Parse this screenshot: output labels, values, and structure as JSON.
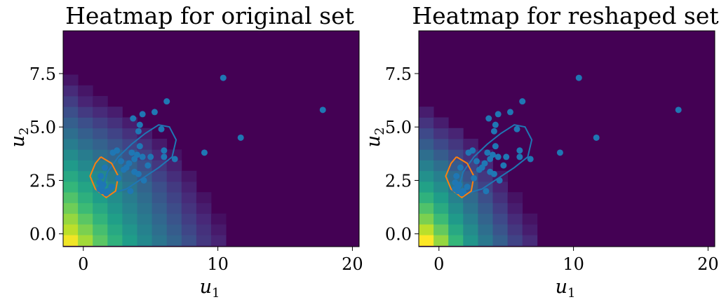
{
  "chart_data": [
    {
      "type": "heatmap",
      "title": "Heatmap for original set",
      "xlabel": "u",
      "xlabel_sub": "1",
      "ylabel": "u",
      "ylabel_sub": "2",
      "xlim": [
        -1.5,
        20.5
      ],
      "ylim": [
        -0.6,
        9.5
      ],
      "xticks": [
        0,
        10,
        20
      ],
      "xtick_labels": [
        "0",
        "10",
        "20"
      ],
      "yticks": [
        0.0,
        2.5,
        5.0,
        7.5
      ],
      "ytick_labels": [
        "0.0",
        "2.5",
        "5.0",
        "7.5"
      ],
      "colormap": "viridis",
      "background_color": "#440154",
      "cell_w": 1.1,
      "cell_h": 0.5,
      "columns_x0": -1.5,
      "rows_y0": -0.55,
      "heat_columns": [
        [
          0.98,
          0.9,
          0.84,
          0.78,
          0.72,
          0.66,
          0.6,
          0.54,
          0.48,
          0.42,
          0.36,
          0.3,
          0.24,
          0.18,
          0.12,
          0.06
        ],
        [
          0.86,
          0.8,
          0.74,
          0.68,
          0.63,
          0.58,
          0.53,
          0.47,
          0.42,
          0.36,
          0.3,
          0.24,
          0.17,
          0.1,
          0.06
        ],
        [
          0.74,
          0.7,
          0.65,
          0.6,
          0.55,
          0.52,
          0.47,
          0.42,
          0.36,
          0.31,
          0.25,
          0.19,
          0.12,
          0.06
        ],
        [
          0.64,
          0.6,
          0.56,
          0.52,
          0.49,
          0.46,
          0.42,
          0.37,
          0.32,
          0.26,
          0.2,
          0.14,
          0.08
        ],
        [
          0.55,
          0.52,
          0.48,
          0.45,
          0.42,
          0.39,
          0.35,
          0.31,
          0.26,
          0.2,
          0.14,
          0.08
        ],
        [
          0.47,
          0.44,
          0.41,
          0.38,
          0.35,
          0.32,
          0.28,
          0.24,
          0.19,
          0.14,
          0.08
        ],
        [
          0.39,
          0.36,
          0.33,
          0.3,
          0.27,
          0.24,
          0.2,
          0.16,
          0.11,
          0.07
        ],
        [
          0.32,
          0.29,
          0.26,
          0.23,
          0.2,
          0.17,
          0.13,
          0.09,
          0.05
        ],
        [
          0.24,
          0.21,
          0.18,
          0.15,
          0.12,
          0.09,
          0.06
        ],
        [
          0.16,
          0.14,
          0.11,
          0.08,
          0.05
        ],
        [
          0.1,
          0.07,
          0.04
        ]
      ],
      "points": [
        [
          1.2,
          2.1
        ],
        [
          1.5,
          2.3
        ],
        [
          1.4,
          2.0
        ],
        [
          1.8,
          2.0
        ],
        [
          1.2,
          2.4
        ],
        [
          2.1,
          2.2
        ],
        [
          1.6,
          3.1
        ],
        [
          1.3,
          2.7
        ],
        [
          1.7,
          1.9
        ],
        [
          1.4,
          2.2
        ],
        [
          2.2,
          3.8
        ],
        [
          2.5,
          3.9
        ],
        [
          3.0,
          3.0
        ],
        [
          3.2,
          3.1
        ],
        [
          3.4,
          3.3
        ],
        [
          3.6,
          3.8
        ],
        [
          3.8,
          3.5
        ],
        [
          4.0,
          3.7
        ],
        [
          4.2,
          4.1
        ],
        [
          4.4,
          3.6
        ],
        [
          3.7,
          5.4
        ],
        [
          4.1,
          4.8
        ],
        [
          4.2,
          5.1
        ],
        [
          4.4,
          5.6
        ],
        [
          4.8,
          3.2
        ],
        [
          5.0,
          3.6
        ],
        [
          5.3,
          5.7
        ],
        [
          5.8,
          4.9
        ],
        [
          6.0,
          3.9
        ],
        [
          6.0,
          3.6
        ],
        [
          6.2,
          6.2
        ],
        [
          6.8,
          3.5
        ],
        [
          3.8,
          2.9
        ],
        [
          4.1,
          2.8
        ],
        [
          3.5,
          2.0
        ],
        [
          4.5,
          2.5
        ],
        [
          2.6,
          2.6
        ],
        [
          2.8,
          3.4
        ],
        [
          9.0,
          3.8
        ],
        [
          10.4,
          7.3
        ],
        [
          11.7,
          4.5
        ],
        [
          17.8,
          5.8
        ]
      ],
      "point_color": "#1f77b4",
      "contours": [
        {
          "color": "#1f77b4",
          "points": [
            [
              1.5,
              2.2
            ],
            [
              1.8,
              2.9
            ],
            [
              2.6,
              3.6
            ],
            [
              3.6,
              4.2
            ],
            [
              4.6,
              4.7
            ],
            [
              5.6,
              5.1
            ],
            [
              6.4,
              5.0
            ],
            [
              6.9,
              4.4
            ],
            [
              6.6,
              3.6
            ],
            [
              5.6,
              3.1
            ],
            [
              4.4,
              2.6
            ],
            [
              3.2,
              2.1
            ],
            [
              2.1,
              1.9
            ],
            [
              1.6,
              2.0
            ],
            [
              1.5,
              2.2
            ]
          ]
        },
        {
          "color": "#ff7f0e",
          "points": [
            [
              1.3,
              3.6
            ],
            [
              2.1,
              3.3
            ],
            [
              2.6,
              2.7
            ],
            [
              2.4,
              2.0
            ],
            [
              1.7,
              1.7
            ],
            [
              0.9,
              2.1
            ],
            [
              0.5,
              2.7
            ],
            [
              0.9,
              3.3
            ],
            [
              1.3,
              3.6
            ]
          ]
        }
      ]
    },
    {
      "type": "heatmap",
      "title": "Heatmap for reshaped set",
      "xlabel": "u",
      "xlabel_sub": "1",
      "ylabel": "u",
      "ylabel_sub": "2",
      "xlim": [
        -1.5,
        20.5
      ],
      "ylim": [
        -0.6,
        9.5
      ],
      "xticks": [
        0,
        10,
        20
      ],
      "xtick_labels": [
        "0",
        "10",
        "20"
      ],
      "yticks": [
        0.0,
        2.5,
        5.0,
        7.5
      ],
      "ytick_labels": [
        "0.0",
        "2.5",
        "5.0",
        "7.5"
      ],
      "colormap": "viridis",
      "background_color": "#440154",
      "cell_w": 1.1,
      "cell_h": 0.5,
      "columns_x0": -1.5,
      "rows_y0": -0.55,
      "heat_columns": [
        [
          1.0,
          0.9,
          0.8,
          0.72,
          0.64,
          0.57,
          0.5,
          0.43,
          0.36,
          0.29,
          0.22,
          0.15,
          0.08
        ],
        [
          0.84,
          0.76,
          0.68,
          0.61,
          0.55,
          0.49,
          0.43,
          0.36,
          0.29,
          0.22,
          0.15,
          0.08
        ],
        [
          0.66,
          0.6,
          0.54,
          0.49,
          0.44,
          0.39,
          0.34,
          0.28,
          0.22,
          0.16,
          0.1
        ],
        [
          0.52,
          0.48,
          0.43,
          0.38,
          0.34,
          0.3,
          0.25,
          0.2,
          0.14,
          0.08
        ],
        [
          0.4,
          0.36,
          0.32,
          0.28,
          0.24,
          0.2,
          0.16,
          0.11,
          0.06
        ],
        [
          0.3,
          0.26,
          0.22,
          0.18,
          0.14,
          0.1,
          0.06
        ],
        [
          0.2,
          0.16,
          0.12,
          0.08,
          0.05
        ],
        [
          0.12,
          0.08,
          0.05
        ]
      ],
      "points": [
        [
          1.2,
          2.1
        ],
        [
          1.5,
          2.3
        ],
        [
          1.4,
          2.0
        ],
        [
          1.8,
          2.0
        ],
        [
          1.2,
          2.4
        ],
        [
          2.1,
          2.2
        ],
        [
          1.6,
          3.1
        ],
        [
          1.3,
          2.7
        ],
        [
          1.7,
          1.9
        ],
        [
          1.4,
          2.2
        ],
        [
          2.2,
          3.8
        ],
        [
          2.5,
          3.9
        ],
        [
          3.0,
          3.0
        ],
        [
          3.2,
          3.1
        ],
        [
          3.4,
          3.3
        ],
        [
          3.6,
          3.8
        ],
        [
          3.8,
          3.5
        ],
        [
          4.0,
          3.7
        ],
        [
          4.2,
          4.1
        ],
        [
          4.4,
          3.6
        ],
        [
          3.7,
          5.4
        ],
        [
          4.1,
          4.8
        ],
        [
          4.2,
          5.1
        ],
        [
          4.4,
          5.6
        ],
        [
          4.8,
          3.2
        ],
        [
          5.0,
          3.6
        ],
        [
          5.3,
          5.7
        ],
        [
          5.8,
          4.9
        ],
        [
          6.0,
          3.9
        ],
        [
          6.0,
          3.6
        ],
        [
          6.2,
          6.2
        ],
        [
          6.8,
          3.5
        ],
        [
          3.8,
          2.9
        ],
        [
          4.1,
          2.8
        ],
        [
          3.5,
          2.0
        ],
        [
          4.5,
          2.5
        ],
        [
          2.6,
          2.6
        ],
        [
          2.8,
          3.4
        ],
        [
          9.0,
          3.8
        ],
        [
          10.4,
          7.3
        ],
        [
          11.7,
          4.5
        ],
        [
          17.8,
          5.8
        ]
      ],
      "point_color": "#1f77b4",
      "contours": [
        {
          "color": "#1f77b4",
          "points": [
            [
              1.5,
              2.2
            ],
            [
              1.8,
              2.9
            ],
            [
              2.6,
              3.6
            ],
            [
              3.6,
              4.2
            ],
            [
              4.6,
              4.7
            ],
            [
              5.6,
              5.1
            ],
            [
              6.4,
              5.0
            ],
            [
              6.9,
              4.4
            ],
            [
              6.6,
              3.6
            ],
            [
              5.6,
              3.1
            ],
            [
              4.4,
              2.6
            ],
            [
              3.2,
              2.1
            ],
            [
              2.1,
              1.9
            ],
            [
              1.6,
              2.0
            ],
            [
              1.5,
              2.2
            ]
          ]
        },
        {
          "color": "#ff7f0e",
          "points": [
            [
              1.3,
              3.6
            ],
            [
              2.1,
              3.3
            ],
            [
              2.6,
              2.7
            ],
            [
              2.4,
              2.0
            ],
            [
              1.7,
              1.7
            ],
            [
              0.9,
              2.1
            ],
            [
              0.5,
              2.7
            ],
            [
              0.9,
              3.3
            ],
            [
              1.3,
              3.6
            ]
          ]
        }
      ]
    }
  ]
}
